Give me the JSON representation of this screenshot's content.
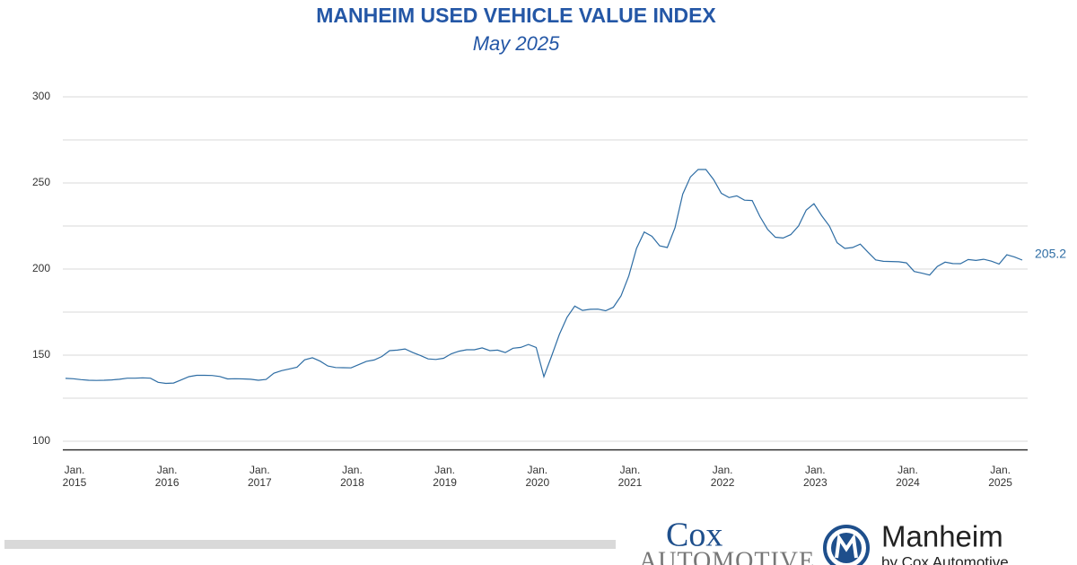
{
  "chart_data": {
    "type": "line",
    "title": "MANHEIM USED VEHICLE VALUE INDEX",
    "subtitle": "May 2025",
    "categories": [
      "Jan. 2015",
      null,
      null,
      null,
      null,
      null,
      null,
      null,
      null,
      null,
      null,
      null,
      "Jan. 2016",
      null,
      null,
      null,
      null,
      null,
      null,
      null,
      null,
      null,
      null,
      null,
      "Jan. 2017",
      null,
      null,
      null,
      null,
      null,
      null,
      null,
      null,
      null,
      null,
      null,
      "Jan. 2018",
      null,
      null,
      null,
      null,
      null,
      null,
      null,
      null,
      null,
      null,
      null,
      "Jan. 2019",
      null,
      null,
      null,
      null,
      null,
      null,
      null,
      null,
      null,
      null,
      null,
      "Jan. 2020",
      null,
      null,
      null,
      null,
      null,
      null,
      null,
      null,
      null,
      null,
      null,
      "Jan. 2021",
      null,
      null,
      null,
      null,
      null,
      null,
      null,
      null,
      null,
      null,
      null,
      "Jan. 2022",
      null,
      null,
      null,
      null,
      null,
      null,
      null,
      null,
      null,
      null,
      null,
      "Jan. 2023",
      null,
      null,
      null,
      null,
      null,
      null,
      null,
      null,
      null,
      null,
      null,
      "Jan. 2024",
      null,
      null,
      null,
      null,
      null,
      null,
      null,
      null,
      null,
      null,
      null,
      "Jan. 2025",
      null,
      null,
      null,
      null
    ],
    "series": [
      {
        "color": "#2e6da4",
        "values": [
          136.5,
          136.3,
          135.8,
          135.4,
          135.3,
          135.4,
          135.6,
          136,
          136.6,
          136.6,
          136.8,
          136.6,
          134.2,
          133.6,
          133.8,
          135.6,
          137.5,
          138.3,
          138.3,
          138.2,
          137.6,
          136.2,
          136.3,
          136.2,
          136,
          135.4,
          135.9,
          139.5,
          141,
          142,
          143,
          147.3,
          148.5,
          146.5,
          143.7,
          142.8,
          142.7,
          142.6,
          144.5,
          146.4,
          147.2,
          149.2,
          152.6,
          152.9,
          153.6,
          151.5,
          149.8,
          147.8,
          147.5,
          148.2,
          150.8,
          152.3,
          153.1,
          153.1,
          154.2,
          152.6,
          152.9,
          151.5,
          154,
          154.5,
          156.2,
          154.5,
          137.5,
          149.5,
          162,
          172,
          178.5,
          176,
          176.6,
          176.7,
          175.8,
          177.8,
          184.5,
          196,
          212,
          221.5,
          219,
          213.5,
          212.5,
          224,
          243.5,
          253.5,
          257.8,
          257.8,
          252,
          244,
          241.5,
          242.5,
          240,
          239.8,
          230.5,
          223,
          218.5,
          218,
          220,
          225,
          234.2,
          237.9,
          231,
          225,
          215.3,
          212,
          212.5,
          214.5,
          209.8,
          205.3,
          204.5,
          204.4,
          204.2,
          203.6,
          198.6,
          197.6,
          196.5,
          201.5,
          204,
          203.2,
          203.1,
          205.5,
          205,
          205.7,
          204.6,
          202.9,
          208.3,
          207,
          205.2
        ]
      }
    ],
    "ylim": [
      95,
      300
    ],
    "yticks": [
      100,
      150,
      200,
      250,
      300
    ],
    "yminor": [
      125,
      175,
      225,
      275
    ],
    "grid": true,
    "label_last": true
  },
  "logos": {
    "cox": "Cox",
    "cox_sub": "Automotive",
    "manheim": "Manheim",
    "manheim_sub": "by Cox Automotive"
  }
}
